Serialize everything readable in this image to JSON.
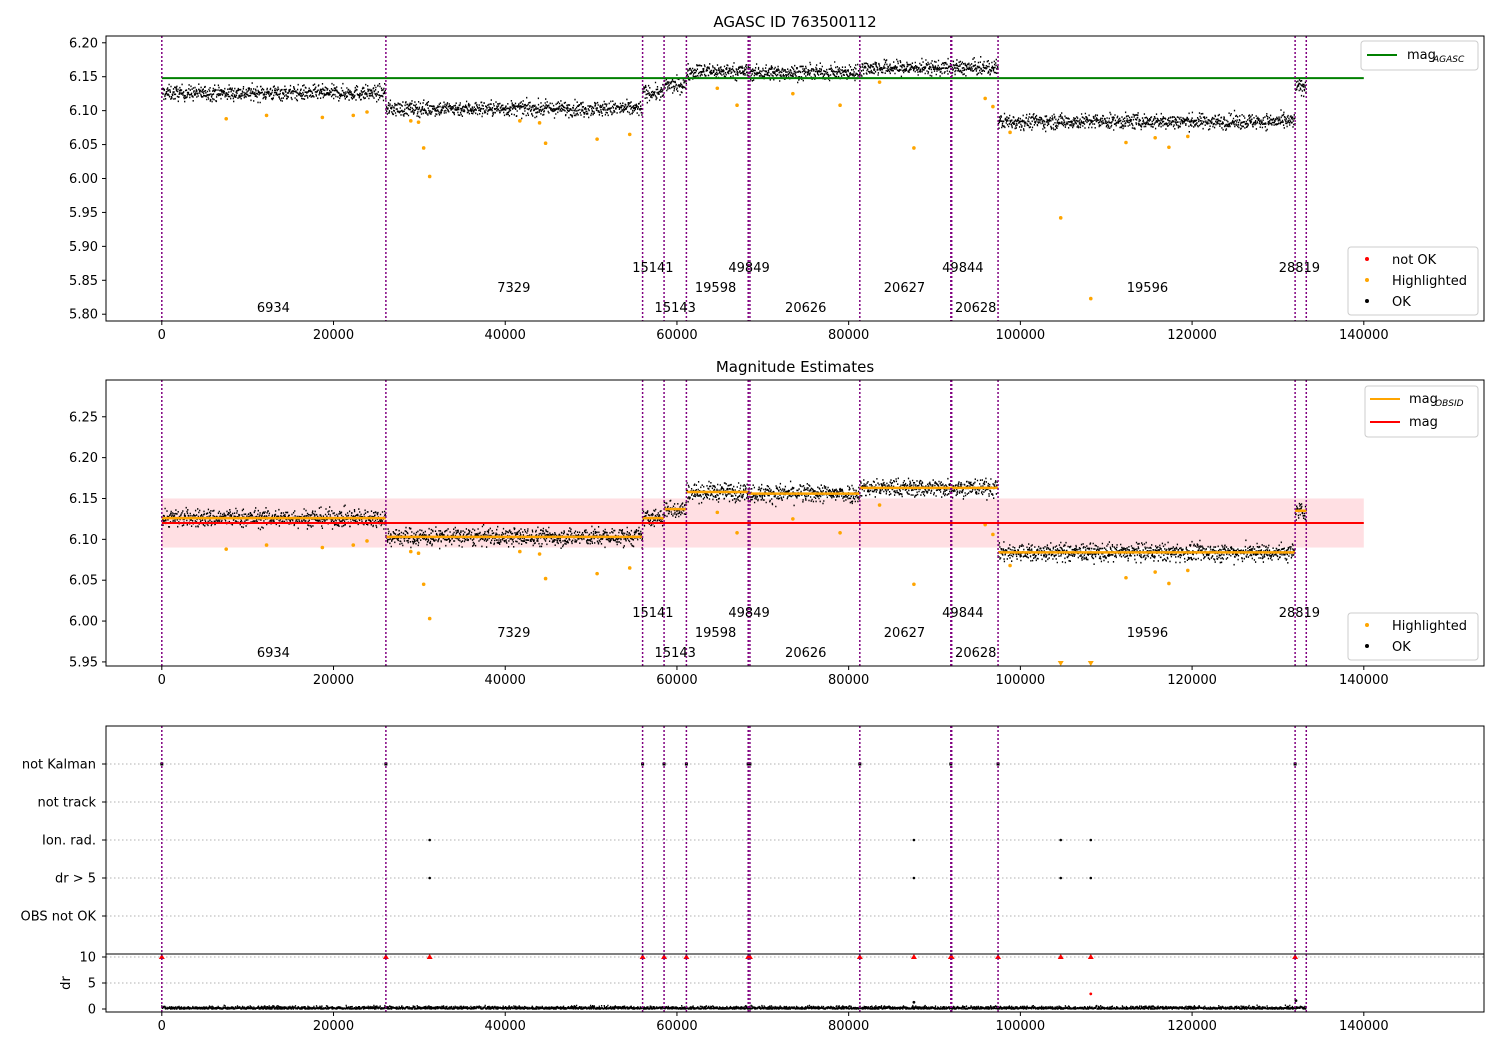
{
  "chart_data": [
    {
      "type": "scatter",
      "title": "AGASC ID 763500112",
      "xlim": [
        -6500,
        154000
      ],
      "ylim": [
        5.79,
        6.21
      ],
      "xticks": [
        0,
        20000,
        40000,
        60000,
        80000,
        100000,
        120000,
        140000
      ],
      "xtick_labels": [
        "0",
        "20000",
        "40000",
        "60000",
        "80000",
        "100000",
        "120000",
        "140000"
      ],
      "yticks": [
        5.8,
        5.85,
        5.9,
        5.95,
        6.0,
        6.05,
        6.1,
        6.15,
        6.2
      ],
      "ytick_labels": [
        "5.80",
        "5.85",
        "5.90",
        "5.95",
        "6.00",
        "6.05",
        "6.10",
        "6.15",
        "6.20"
      ],
      "mag_agasc": 6.148,
      "mag_agasc_color": "#008000",
      "legend_lines": [
        {
          "label": "mag",
          "sub": "AGASC",
          "color": "#008000"
        }
      ],
      "legend_points": [
        {
          "label": "not OK",
          "color": "#ff0000"
        },
        {
          "label": "Highlighted",
          "color": "#ffa500"
        },
        {
          "label": "OK",
          "color": "#000000"
        }
      ],
      "segments": [
        {
          "x0": 0,
          "x1": 26100,
          "mean": 6.126
        },
        {
          "x0": 26100,
          "x1": 56000,
          "mean": 6.103
        },
        {
          "x0": 56000,
          "x1": 58500,
          "mean": 6.126
        },
        {
          "x0": 58500,
          "x1": 61100,
          "mean": 6.137
        },
        {
          "x0": 61100,
          "x1": 68300,
          "mean": 6.158
        },
        {
          "x0": 68300,
          "x1": 81300,
          "mean": 6.156
        },
        {
          "x0": 81300,
          "x1": 91900,
          "mean": 6.163
        },
        {
          "x0": 91900,
          "x1": 97400,
          "mean": 6.163
        },
        {
          "x0": 97400,
          "x1": 132000,
          "mean": 6.084
        },
        {
          "x0": 132000,
          "x1": 133300,
          "mean": 6.135
        }
      ],
      "highlighted_points": [
        [
          7500,
          6.088
        ],
        [
          12200,
          6.093
        ],
        [
          18700,
          6.09
        ],
        [
          22300,
          6.093
        ],
        [
          23900,
          6.098
        ],
        [
          29000,
          6.085
        ],
        [
          30500,
          6.045
        ],
        [
          31200,
          6.003
        ],
        [
          29900,
          6.083
        ],
        [
          41700,
          6.085
        ],
        [
          44000,
          6.082
        ],
        [
          44700,
          6.052
        ],
        [
          50700,
          6.058
        ],
        [
          54500,
          6.065
        ],
        [
          64700,
          6.133
        ],
        [
          67000,
          6.108
        ],
        [
          73500,
          6.125
        ],
        [
          79000,
          6.108
        ],
        [
          83600,
          6.142
        ],
        [
          87600,
          6.045
        ],
        [
          95900,
          6.118
        ],
        [
          96800,
          6.106
        ],
        [
          98800,
          6.068
        ],
        [
          104700,
          5.942
        ],
        [
          108200,
          5.823
        ],
        [
          112300,
          6.053
        ],
        [
          115700,
          6.06
        ],
        [
          117300,
          6.046
        ],
        [
          119500,
          6.062
        ]
      ],
      "obsid_labels": [
        {
          "text": "6934",
          "x": 13000,
          "row": 3
        },
        {
          "text": "7329",
          "x": 41000,
          "row": 2
        },
        {
          "text": "15141",
          "x": 57200,
          "row": 1
        },
        {
          "text": "15143",
          "x": 59800,
          "row": 3
        },
        {
          "text": "19598",
          "x": 64500,
          "row": 2
        },
        {
          "text": "49849",
          "x": 68400,
          "row": 1
        },
        {
          "text": "20626",
          "x": 75000,
          "row": 3
        },
        {
          "text": "20627",
          "x": 86500,
          "row": 2
        },
        {
          "text": "49844",
          "x": 93300,
          "row": 1
        },
        {
          "text": "20628",
          "x": 94800,
          "row": 3
        },
        {
          "text": "19596",
          "x": 114800,
          "row": 2
        },
        {
          "text": "28819",
          "x": 132500,
          "row": 1
        }
      ],
      "obs_boundaries": [
        0,
        26100,
        56000,
        58500,
        61100,
        68300,
        68500,
        81300,
        91900,
        92000,
        97400,
        132000,
        133300
      ],
      "boundary_color": "#800080"
    },
    {
      "type": "scatter",
      "title": "Magnitude Estimates",
      "xlim": [
        -6500,
        154000
      ],
      "ylim": [
        5.945,
        6.295
      ],
      "yticks": [
        5.95,
        6.0,
        6.05,
        6.1,
        6.15,
        6.2,
        6.25
      ],
      "ytick_labels": [
        "5.95",
        "6.00",
        "6.05",
        "6.10",
        "6.15",
        "6.20",
        "6.25"
      ],
      "mag": 6.12,
      "mag_band": [
        6.09,
        6.15
      ],
      "mag_color": "#ff0000",
      "mag_obsid_color": "#ffa500",
      "legend_lines": [
        {
          "label": "mag",
          "sub": "OBSID",
          "color": "#ffa500"
        },
        {
          "label": "mag",
          "sub": "",
          "color": "#ff0000"
        }
      ],
      "legend_points": [
        {
          "label": "Highlighted",
          "color": "#ffa500"
        },
        {
          "label": "OK",
          "color": "#000000"
        }
      ]
    },
    {
      "type": "scatter",
      "title": "",
      "xlim": [
        -6500,
        154000
      ],
      "flag_rows": [
        "not Kalman",
        "not track",
        "Ion. rad.",
        "dr > 5",
        "OBS not OK"
      ],
      "dr_ylabel": "dr",
      "dr_yticks": [
        0,
        5,
        10
      ],
      "dr_ytick_labels": [
        "0",
        "5",
        "10"
      ],
      "not_kalman_x": [
        0,
        26100,
        56000,
        58500,
        61100,
        68300,
        68500,
        81300,
        91900,
        97400,
        132000
      ],
      "ion_rad_x": [
        31200,
        87600,
        104700,
        108200
      ],
      "dr_gt5_x": [
        31200,
        87600,
        104700,
        108200
      ],
      "dr_clipped_x": [
        0,
        26100,
        31200,
        56000,
        58500,
        61100,
        68300,
        68500,
        81300,
        87600,
        91900,
        92000,
        97400,
        104700,
        108200,
        132000
      ],
      "dr_outliers": [
        [
          108200,
          2.9
        ],
        [
          87600,
          1.3
        ],
        [
          132100,
          1.6
        ]
      ]
    }
  ]
}
